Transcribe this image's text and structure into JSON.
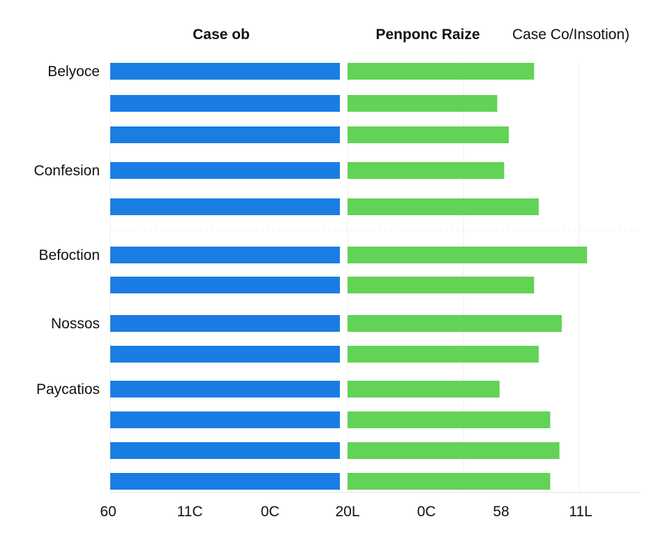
{
  "chart_data": {
    "type": "bar",
    "orientation": "horizontal",
    "titles": {
      "left_panel": "Case ob",
      "right_panel": "Penponc Raize",
      "right_extra": "Case Co/Insotion)"
    },
    "group_labels": [
      "Belyoce",
      "Confesion",
      "Befoction",
      "Nossos",
      "Paycatios"
    ],
    "x_tick_labels": [
      "60",
      "11C",
      "0C",
      "20L",
      "0C",
      "58",
      "11L"
    ],
    "grid": true,
    "series": [
      {
        "color": "#1a7de3",
        "values": [
          100,
          100,
          100,
          100,
          100,
          100,
          100,
          100,
          100,
          100,
          100,
          100,
          100
        ]
      },
      {
        "color": "#62d356",
        "values": [
          81,
          65,
          70,
          68,
          83,
          104,
          81,
          93,
          83,
          66,
          88,
          92,
          88
        ]
      }
    ]
  }
}
